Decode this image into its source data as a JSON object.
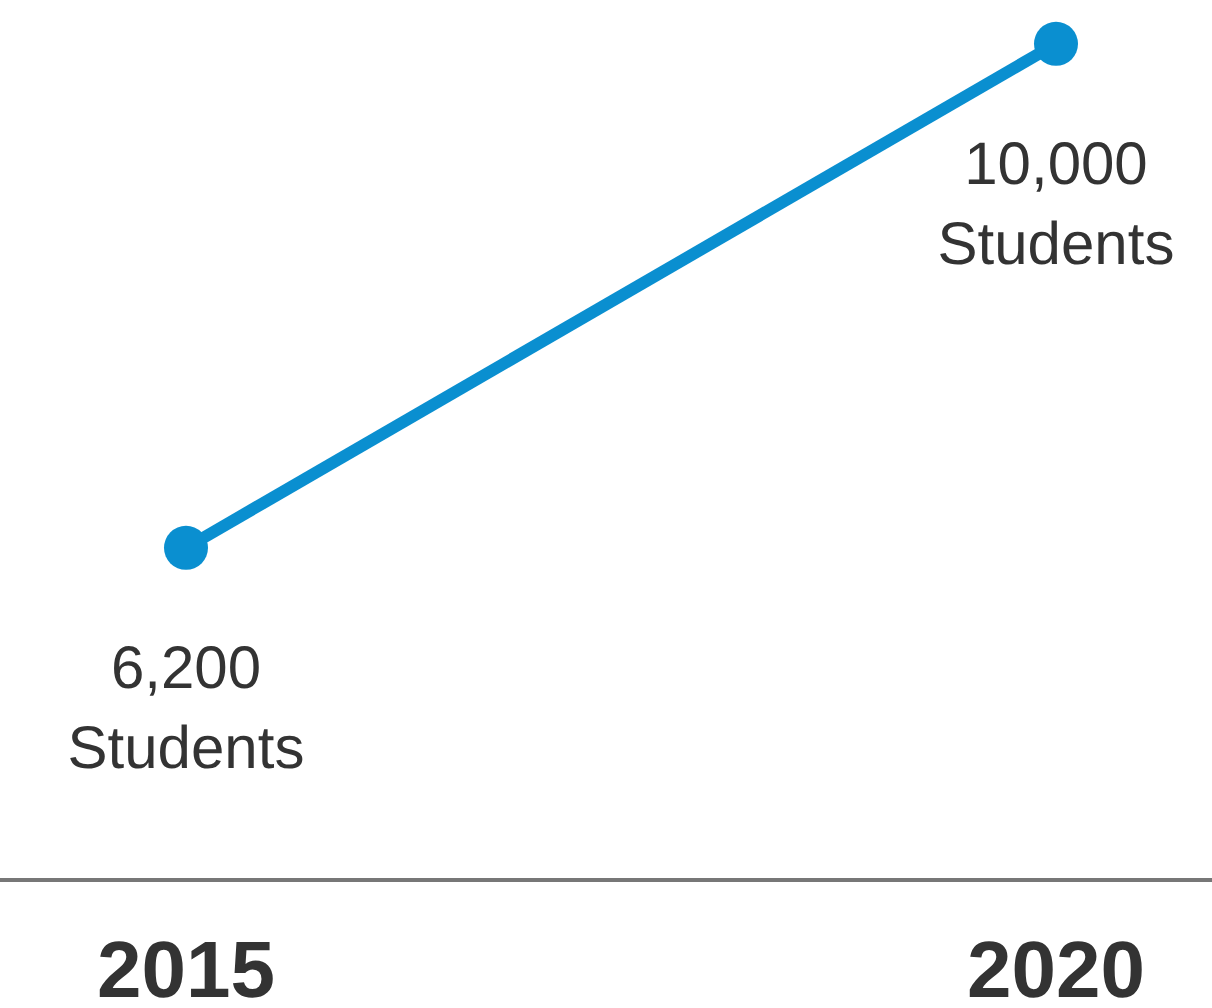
{
  "chart_data": {
    "type": "line",
    "categories": [
      "2015",
      "2020"
    ],
    "series": [
      {
        "color": "#0a8fd0",
        "values": [
          6200,
          10000
        ],
        "value_labels": [
          "6,200\nStudents",
          "10,000\nStudents"
        ]
      }
    ],
    "marker": "circle"
  }
}
